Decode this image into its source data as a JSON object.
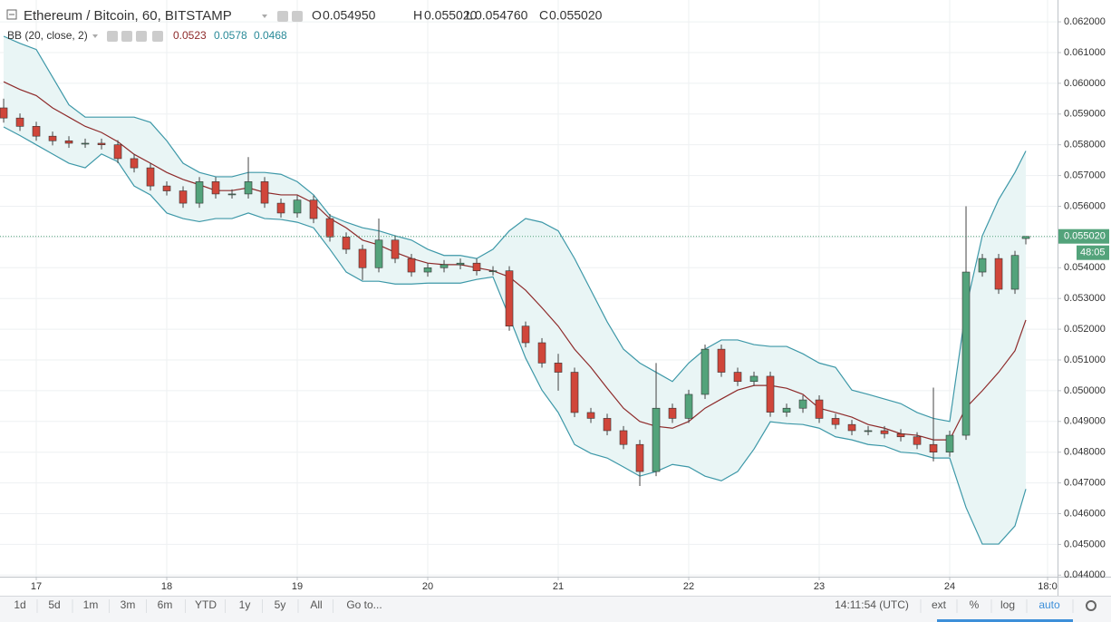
{
  "header": {
    "title": "Ethereum / Bitcoin, 60, BITSTAMP",
    "open_label": "O",
    "open": "0.054950",
    "high_label": "H",
    "high": "0.055020",
    "low_label": "L",
    "low": "0.054760",
    "close_label": "C",
    "close": "0.055020"
  },
  "chart_data": {
    "type": "candlestick",
    "x": [
      -6,
      -3,
      0,
      3,
      6,
      9,
      12,
      15,
      18,
      21,
      24,
      27,
      30,
      33,
      36,
      39,
      42,
      45,
      48,
      51,
      54,
      57,
      60,
      63,
      66,
      69,
      72,
      75,
      78,
      81,
      84,
      87,
      90,
      93,
      96,
      99,
      102,
      105,
      108,
      111,
      114,
      117,
      120,
      123,
      126,
      129,
      132,
      135,
      138,
      141,
      144,
      147,
      150,
      153,
      156,
      159,
      162,
      165,
      168,
      171,
      174,
      177,
      180,
      182
    ],
    "open": [
      0.0592,
      0.05887,
      0.0586,
      0.05828,
      0.05813,
      0.05805,
      0.05805,
      0.058,
      0.05755,
      0.05725,
      0.05666,
      0.0565,
      0.0561,
      0.0568,
      0.0564,
      0.0564,
      0.0568,
      0.0561,
      0.05578,
      0.0562,
      0.0556,
      0.055,
      0.0546,
      0.054,
      0.0549,
      0.0543,
      0.05386,
      0.054,
      0.0541,
      0.05415,
      0.0539,
      0.0539,
      0.0521,
      0.05156,
      0.0509,
      0.0506,
      0.04929,
      0.0491,
      0.0487,
      0.04825,
      0.04737,
      0.04943,
      0.0491,
      0.04988,
      0.05135,
      0.0506,
      0.0503,
      0.05047,
      0.0493,
      0.04943,
      0.0497,
      0.0491,
      0.0489,
      0.0487,
      0.0487,
      0.0486,
      0.0485,
      0.04825,
      0.048,
      0.04855,
      0.05386,
      0.0543,
      0.0533,
      0.05495
    ],
    "high": [
      0.0595,
      0.05902,
      0.05875,
      0.05843,
      0.05828,
      0.0582,
      0.0582,
      0.05815,
      0.0577,
      0.0574,
      0.05681,
      0.05665,
      0.05695,
      0.05695,
      0.05655,
      0.0576,
      0.05695,
      0.05625,
      0.05635,
      0.05635,
      0.05575,
      0.05515,
      0.05475,
      0.0556,
      0.05505,
      0.05445,
      0.05415,
      0.05425,
      0.0543,
      0.0543,
      0.05405,
      0.05405,
      0.05225,
      0.05171,
      0.0512,
      0.05075,
      0.04944,
      0.04925,
      0.04885,
      0.0484,
      0.0509,
      0.04958,
      0.05003,
      0.0515,
      0.0515,
      0.05075,
      0.05062,
      0.05062,
      0.04958,
      0.04985,
      0.04985,
      0.04925,
      0.04905,
      0.04885,
      0.04885,
      0.04875,
      0.04865,
      0.0501,
      0.0487,
      0.056,
      0.05445,
      0.05445,
      0.05455,
      0.05502
    ],
    "low": [
      0.05872,
      0.05845,
      0.05813,
      0.05798,
      0.0579,
      0.0579,
      0.05785,
      0.0574,
      0.0571,
      0.05651,
      0.05635,
      0.05595,
      0.05595,
      0.05625,
      0.05625,
      0.05625,
      0.05595,
      0.05563,
      0.05563,
      0.05545,
      0.05485,
      0.05445,
      0.0536,
      0.05385,
      0.05415,
      0.05371,
      0.05371,
      0.05385,
      0.05395,
      0.05375,
      0.05375,
      0.05195,
      0.05141,
      0.05075,
      0.05,
      0.04914,
      0.04895,
      0.04855,
      0.0481,
      0.0469,
      0.04722,
      0.04895,
      0.04895,
      0.04973,
      0.05045,
      0.05015,
      0.05015,
      0.04915,
      0.04915,
      0.04928,
      0.04895,
      0.04875,
      0.04855,
      0.04855,
      0.04845,
      0.04835,
      0.0481,
      0.0477,
      0.04785,
      0.0484,
      0.05371,
      0.05315,
      0.05315,
      0.05476
    ],
    "close": [
      0.05887,
      0.0586,
      0.05828,
      0.05813,
      0.05805,
      0.05805,
      0.058,
      0.05755,
      0.05725,
      0.05666,
      0.0565,
      0.0561,
      0.0568,
      0.0564,
      0.0564,
      0.0568,
      0.0561,
      0.05578,
      0.0562,
      0.0556,
      0.055,
      0.0546,
      0.054,
      0.0549,
      0.0543,
      0.05386,
      0.054,
      0.0541,
      0.05415,
      0.0539,
      0.0539,
      0.0521,
      0.05156,
      0.0509,
      0.0506,
      0.04929,
      0.0491,
      0.0487,
      0.04825,
      0.04737,
      0.04943,
      0.0491,
      0.04988,
      0.05135,
      0.0506,
      0.0503,
      0.05047,
      0.0493,
      0.04943,
      0.0497,
      0.0491,
      0.0489,
      0.0487,
      0.0487,
      0.0486,
      0.0485,
      0.04825,
      0.048,
      0.04855,
      0.05386,
      0.0543,
      0.0533,
      0.0544,
      0.05502
    ],
    "up_color": "#53a37b",
    "down_color": "#d0463a",
    "bands": {
      "label": "BB (20, close, 2)",
      "line_color": "#3d98a8",
      "fill_color": "#e9f5f5",
      "basis_color": "#8e2a2a",
      "upper": [
        0.06153,
        0.0613,
        0.0611,
        0.0602,
        0.0593,
        0.0589,
        0.0589,
        0.0589,
        0.0589,
        0.05873,
        0.05813,
        0.0574,
        0.0571,
        0.05696,
        0.05696,
        0.0571,
        0.0571,
        0.05704,
        0.0568,
        0.05637,
        0.0557,
        0.05548,
        0.0553,
        0.0552,
        0.05504,
        0.0549,
        0.0546,
        0.0544,
        0.0544,
        0.0543,
        0.0546,
        0.0552,
        0.0556,
        0.05548,
        0.0552,
        0.0543,
        0.05327,
        0.05224,
        0.05135,
        0.0509,
        0.0506,
        0.0503,
        0.0509,
        0.05135,
        0.05165,
        0.05165,
        0.0515,
        0.05144,
        0.05144,
        0.0512,
        0.0509,
        0.05076,
        0.05002,
        0.04988,
        0.04973,
        0.04958,
        0.04929,
        0.0491,
        0.049,
        0.0527,
        0.05504,
        0.05622,
        0.0571,
        0.0578
      ],
      "basis": [
        0.06005,
        0.0598,
        0.0596,
        0.0592,
        0.0589,
        0.0586,
        0.0584,
        0.0581,
        0.05769,
        0.0574,
        0.0571,
        0.05687,
        0.0567,
        0.05651,
        0.05651,
        0.0566,
        0.05645,
        0.05637,
        0.05637,
        0.0561,
        0.0556,
        0.0553,
        0.0549,
        0.05474,
        0.0545,
        0.0543,
        0.05415,
        0.0541,
        0.0541,
        0.054,
        0.0539,
        0.0537,
        0.05327,
        0.0527,
        0.0521,
        0.05135,
        0.05076,
        0.05008,
        0.04943,
        0.049,
        0.04884,
        0.04878,
        0.049,
        0.04943,
        0.04973,
        0.05002,
        0.05017,
        0.05017,
        0.05008,
        0.04988,
        0.04943,
        0.04929,
        0.04914,
        0.0489,
        0.04878,
        0.0486,
        0.04855,
        0.0484,
        0.0484,
        0.04945,
        0.05,
        0.0506,
        0.0513,
        0.0523
      ],
      "lower": [
        0.05858,
        0.0583,
        0.058,
        0.0577,
        0.0574,
        0.05725,
        0.0577,
        0.05745,
        0.05666,
        0.05637,
        0.05578,
        0.0556,
        0.0555,
        0.0556,
        0.0556,
        0.05578,
        0.0556,
        0.05557,
        0.05548,
        0.0553,
        0.0546,
        0.05386,
        0.05356,
        0.05356,
        0.05347,
        0.05347,
        0.0535,
        0.0535,
        0.0535,
        0.05362,
        0.0537,
        0.0524,
        0.05106,
        0.05002,
        0.04929,
        0.04825,
        0.04796,
        0.04781,
        0.04752,
        0.04722,
        0.04737,
        0.0476,
        0.04752,
        0.04722,
        0.04707,
        0.04737,
        0.0481,
        0.04899,
        0.04893,
        0.0489,
        0.04878,
        0.0485,
        0.0484,
        0.04825,
        0.0482,
        0.048,
        0.04796,
        0.04781,
        0.04781,
        0.0462,
        0.04501,
        0.04501,
        0.0456,
        0.0468
      ],
      "basis_label": "0.0523",
      "upper_label": "0.0578",
      "lower_label": "0.0468"
    },
    "xlim": [
      -6.67,
      187.83
    ],
    "xticks": [
      {
        "value": 0,
        "label": "17"
      },
      {
        "value": 24,
        "label": "18"
      },
      {
        "value": 48,
        "label": "19"
      },
      {
        "value": 72,
        "label": "20"
      },
      {
        "value": 96,
        "label": "21"
      },
      {
        "value": 120,
        "label": "22"
      },
      {
        "value": 144,
        "label": "23"
      },
      {
        "value": 168,
        "label": "24"
      },
      {
        "value": 186,
        "label": "18:0"
      }
    ],
    "ylim": [
      0.04395,
      0.06271
    ],
    "yticks": [
      {
        "value": 0.044,
        "label": "0.044000"
      },
      {
        "value": 0.045,
        "label": "0.045000"
      },
      {
        "value": 0.046,
        "label": "0.046000"
      },
      {
        "value": 0.047,
        "label": "0.047000"
      },
      {
        "value": 0.048,
        "label": "0.048000"
      },
      {
        "value": 0.049,
        "label": "0.049000"
      },
      {
        "value": 0.05,
        "label": "0.050000"
      },
      {
        "value": 0.051,
        "label": "0.051000"
      },
      {
        "value": 0.052,
        "label": "0.052000"
      },
      {
        "value": 0.053,
        "label": "0.053000"
      },
      {
        "value": 0.054,
        "label": "0.054000"
      },
      {
        "value": 0.055,
        "label": "0.055000"
      },
      {
        "value": 0.056,
        "label": "0.056000"
      },
      {
        "value": 0.057,
        "label": "0.057000"
      },
      {
        "value": 0.058,
        "label": "0.058000"
      },
      {
        "value": 0.059,
        "label": "0.059000"
      },
      {
        "value": 0.06,
        "label": "0.060000"
      },
      {
        "value": 0.061,
        "label": "0.061000"
      },
      {
        "value": 0.062,
        "label": "0.062000"
      }
    ],
    "grid": true,
    "price_label": "0.055020",
    "countdown": "48:05"
  },
  "toolbar": {
    "ranges": [
      "1d",
      "5d",
      "1m",
      "3m",
      "6m",
      "YTD",
      "1y",
      "5y",
      "All",
      "Go to..."
    ],
    "clock": "14:11:54 (UTC)",
    "ext": "ext",
    "percent": "%",
    "log": "log",
    "auto": "auto"
  }
}
